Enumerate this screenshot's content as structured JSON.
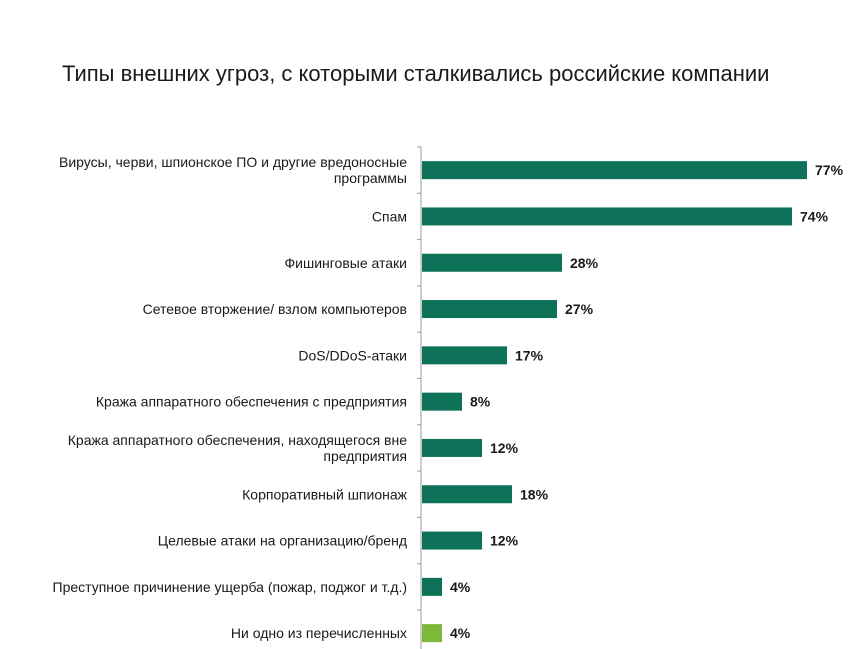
{
  "chart_data": {
    "type": "bar",
    "orientation": "horizontal",
    "title": "Типы внешних угроз, с которыми сталкивались российские компании",
    "categories": [
      "Вирусы, черви, шпионское ПО и другие вредоносные программы",
      "Спам",
      "Фишинговые атаки",
      "Сетевое вторжение/ взлом компьютеров",
      "DoS/DDoS-атаки",
      "Кража аппаратного обеспечения с предприятия",
      "Кража аппаратного обеспечения, находящегося вне предприятия",
      "Корпоративный шпионаж",
      "Целевые атаки на организацию/бренд",
      "Преступное причинение ущерба (пожар, поджог и т.д.)",
      "Ни одно из перечисленных"
    ],
    "category_lines": [
      [
        "Вирусы, черви, шпионское ПО и другие вредоносные",
        "программы"
      ],
      [
        "Спам"
      ],
      [
        "Фишинговые атаки"
      ],
      [
        "Сетевое вторжение/ взлом компьютеров"
      ],
      [
        "DoS/DDoS-атаки"
      ],
      [
        "Кража аппаратного обеспечения с предприятия"
      ],
      [
        "Кража аппаратного обеспечения, находящегося вне",
        "предприятия"
      ],
      [
        "Корпоративный шпионаж"
      ],
      [
        "Целевые атаки на организацию/бренд"
      ],
      [
        "Преступное причинение ущерба (пожар, поджог и т.д.)"
      ],
      [
        "Ни одно из перечисленных"
      ]
    ],
    "values": [
      77,
      74,
      28,
      27,
      17,
      8,
      12,
      18,
      12,
      4,
      4
    ],
    "value_labels": [
      "77%",
      "74%",
      "28%",
      "27%",
      "17%",
      "8%",
      "12%",
      "18%",
      "12%",
      "4%",
      "4%"
    ],
    "bar_colors": [
      "#0d7258",
      "#0d7258",
      "#0d7258",
      "#0d7258",
      "#0d7258",
      "#0d7258",
      "#0d7258",
      "#0d7258",
      "#0d7258",
      "#0d7258",
      "#7db83a"
    ],
    "axis_line_color": "#999999",
    "xlim": [
      0,
      100
    ],
    "grid": false,
    "legend": "none"
  }
}
